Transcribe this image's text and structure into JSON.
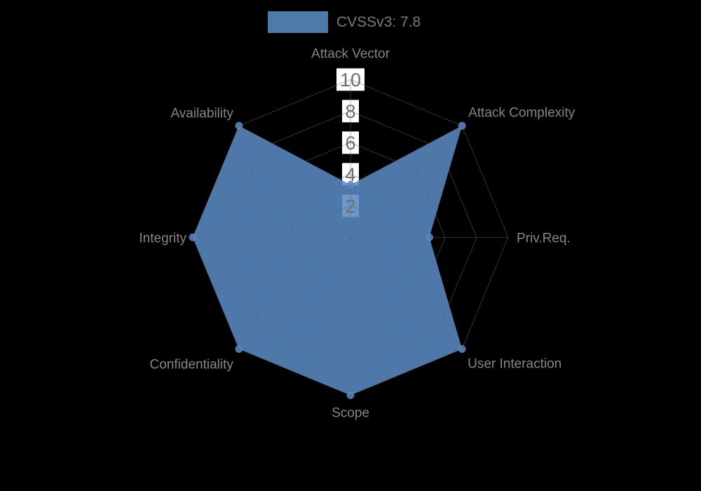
{
  "legend": {
    "label": "CVSSv3: 7.8"
  },
  "colors": {
    "background": "#000000",
    "series_fill": "#5989c0",
    "series_fill_opacity": 0.88,
    "series_solid_on_black": "#4d7aa8",
    "grid_line": "#666666",
    "grid_line_opacity": 0.5,
    "axis_label_text": "#858585",
    "tick_text": "#6e6e6e",
    "tick_box": "#ffffff",
    "legend_text": "#7a7a7a"
  },
  "chart_data": {
    "type": "radar",
    "title": "",
    "categories": [
      "Attack Vector",
      "Attack Complexity",
      "Priv.Req.",
      "User Interaction",
      "Scope",
      "Confidentiality",
      "Integrity",
      "Availability"
    ],
    "series": [
      {
        "name": "CVSSv3: 7.8",
        "values": [
          3.33,
          10,
          5,
          10,
          10,
          10,
          10,
          10
        ]
      }
    ],
    "radial_axis": {
      "min": 0,
      "max": 10,
      "ticks": [
        2,
        4,
        6,
        8,
        10
      ]
    },
    "start_axis": "top",
    "direction": "clockwise",
    "grid": true,
    "markers": true,
    "legend_position": "top-center"
  }
}
